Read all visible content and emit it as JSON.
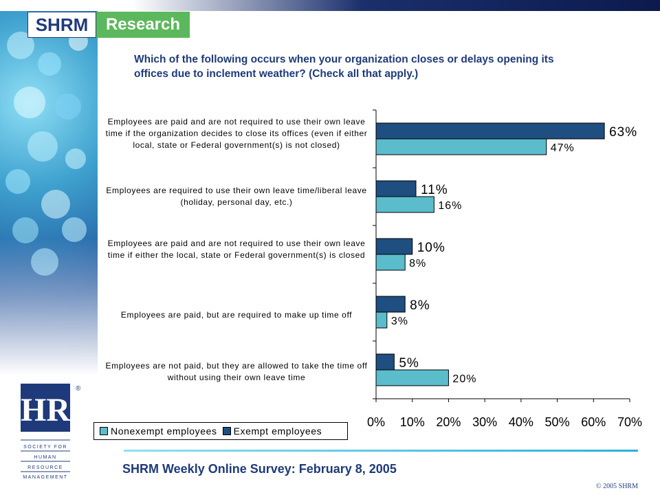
{
  "brand": {
    "shrm": "SHRM",
    "research": "Research"
  },
  "question": "Which of the following occurs when your organization closes or delays opening its offices due to inclement weather? (Check all that apply.)",
  "footer": {
    "title": "SHRM Weekly Online Survey: February 8, 2005",
    "copyright": "© 2005 SHRM"
  },
  "logo": {
    "mark": "HR",
    "lines": [
      "SOCIETY FOR",
      "HUMAN",
      "RESOURCE",
      "MANAGEMENT"
    ],
    "registered": "®"
  },
  "colors": {
    "exempt": "#1f4e80",
    "nonexempt": "#5bbccc",
    "title": "#1f3a7a"
  },
  "chart_data": {
    "type": "bar",
    "orientation": "horizontal",
    "categories": [
      "Employees are paid and are not required to use their own leave time if the organization decides to close its offices (even if either local, state or Federal government(s) is not closed)",
      "Employees are required to use their own leave time/liberal leave (holiday, personal day, etc.)",
      "Employees are paid and are not required to use their own leave time if either the local, state or Federal government(s) is closed",
      "Employees are paid, but are required to make up time off",
      "Employees are not paid, but they are allowed to take the time off without using their own leave time"
    ],
    "series": [
      {
        "name": "Exempt employees",
        "values": [
          63,
          11,
          10,
          8,
          5
        ],
        "labels": [
          "63%",
          "11%",
          "10%",
          "8%",
          "5%"
        ],
        "color": "#1f4e80"
      },
      {
        "name": "Nonexempt employees",
        "values": [
          47,
          16,
          8,
          3,
          20
        ],
        "labels": [
          "47%",
          "16%",
          "8%",
          "3%",
          "20%"
        ],
        "color": "#5bbccc"
      }
    ],
    "xlim": [
      0,
      70
    ],
    "ticks": [
      "0%",
      "10%",
      "20%",
      "30%",
      "40%",
      "50%",
      "60%",
      "70%"
    ],
    "legend": {
      "position": "bottom-left",
      "items": [
        "Nonexempt employees",
        "Exempt employees"
      ]
    }
  }
}
